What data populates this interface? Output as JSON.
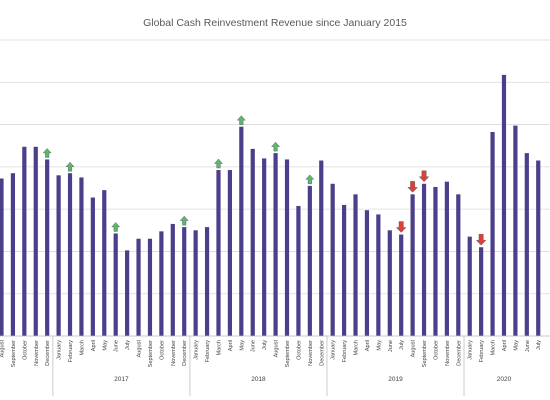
{
  "chart_data": {
    "type": "bar",
    "title": "Global Cash Reinvestment Revenue since January 2015",
    "colors": {
      "bar": "#4b3f8c",
      "arrow_up": "#5fb56f",
      "arrow_down": "#d9413a",
      "grid": "#d9d9d9",
      "axis": "#bfbfbf"
    },
    "categories": [
      "August",
      "September",
      "October",
      "November",
      "December",
      "January",
      "February",
      "March",
      "April",
      "May",
      "June",
      "July",
      "August",
      "September",
      "October",
      "November",
      "December",
      "January",
      "February",
      "March",
      "April",
      "May",
      "June",
      "July",
      "August",
      "September",
      "October",
      "November",
      "December",
      "January",
      "February",
      "March",
      "April",
      "May",
      "June",
      "July",
      "August",
      "September",
      "October",
      "November",
      "December",
      "January",
      "February",
      "March",
      "April",
      "May",
      "June",
      "July"
    ],
    "year_groups": [
      {
        "label": "2017",
        "start": 5,
        "end": 16
      },
      {
        "label": "2018",
        "start": 17,
        "end": 28
      },
      {
        "label": "2019",
        "start": 29,
        "end": 40
      },
      {
        "label": "2020",
        "start": 41,
        "end": 47
      }
    ],
    "values": [
      7.45,
      7.7,
      8.95,
      8.95,
      8.35,
      7.6,
      7.7,
      7.5,
      6.55,
      6.9,
      4.85,
      4.05,
      4.6,
      4.6,
      4.95,
      5.3,
      5.15,
      5.0,
      5.15,
      7.85,
      7.85,
      9.9,
      8.85,
      8.4,
      8.65,
      8.35,
      6.15,
      7.1,
      8.3,
      7.2,
      6.2,
      6.7,
      5.95,
      5.75,
      5.0,
      4.8,
      6.7,
      7.2,
      7.05,
      7.3,
      6.7,
      4.7,
      4.2,
      9.65,
      12.35,
      9.95,
      8.65,
      8.3
    ],
    "arrows": [
      {
        "index": 4,
        "direction": "up"
      },
      {
        "index": 6,
        "direction": "up"
      },
      {
        "index": 10,
        "direction": "up"
      },
      {
        "index": 16,
        "direction": "up"
      },
      {
        "index": 19,
        "direction": "up"
      },
      {
        "index": 21,
        "direction": "up"
      },
      {
        "index": 24,
        "direction": "up"
      },
      {
        "index": 27,
        "direction": "up"
      },
      {
        "index": 35,
        "direction": "down"
      },
      {
        "index": 36,
        "direction": "down"
      },
      {
        "index": 37,
        "direction": "down"
      },
      {
        "index": 42,
        "direction": "down"
      }
    ],
    "ylim": [
      0,
      14
    ],
    "yticks": [
      0,
      2,
      4,
      6,
      8,
      10,
      12,
      14
    ],
    "grid": true,
    "xlabel": "",
    "ylabel": ""
  }
}
